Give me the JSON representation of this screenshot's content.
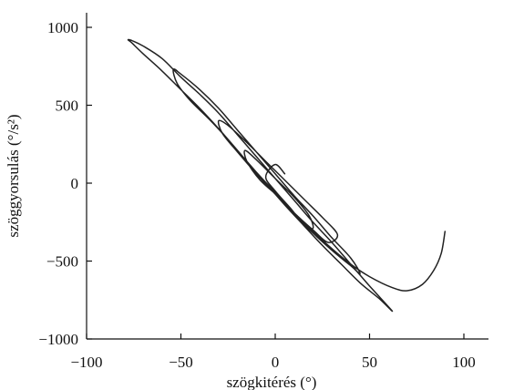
{
  "chart_data": {
    "type": "line",
    "title": "",
    "xlabel": "szögkitérés (°)",
    "ylabel": "szöggyorsulás (°/s²)",
    "xlim": [
      -100,
      125
    ],
    "ylim": [
      -1000,
      1100
    ],
    "x_ticks": [
      -100,
      -50,
      0,
      50,
      100
    ],
    "y_ticks": [
      -1000,
      -500,
      0,
      500,
      1000
    ],
    "x_tick_labels": [
      "−100",
      "−50",
      "0",
      "50",
      "100"
    ],
    "y_tick_labels": [
      "−1000",
      "−500",
      "0",
      "500",
      "1000"
    ],
    "grid": false,
    "legend": "none",
    "series": [
      {
        "color": "#222222",
        "x": [
          90,
          88,
          84,
          78,
          70,
          62,
          50,
          40,
          30,
          20,
          10,
          0,
          -10,
          -20,
          -30,
          -40,
          -50,
          -60,
          -70,
          -76,
          -78,
          -76,
          -70,
          -60,
          -50,
          -40,
          -30,
          -20,
          -10,
          0,
          10,
          20,
          30,
          40,
          50,
          62,
          55,
          45,
          35,
          25,
          15,
          5,
          -5,
          -15,
          -25,
          -35,
          -45,
          -52,
          -54,
          -50,
          -40,
          -30,
          -20,
          -10,
          0,
          10,
          20,
          30,
          40,
          45,
          40,
          30,
          20,
          10,
          0,
          -10,
          -20,
          -28,
          -30,
          -25,
          -15,
          -5,
          5,
          15,
          25,
          33,
          28,
          20,
          10,
          2,
          -8,
          -15,
          -16,
          -10,
          0,
          10,
          18,
          20,
          15,
          8,
          0,
          -5,
          0,
          5
        ],
        "y": [
          -310,
          -450,
          -560,
          -650,
          -690,
          -670,
          -600,
          -520,
          -420,
          -310,
          -190,
          -60,
          70,
          210,
          350,
          480,
          600,
          720,
          830,
          900,
          920,
          915,
          880,
          800,
          680,
          570,
          450,
          310,
          170,
          30,
          -110,
          -250,
          -380,
          -520,
          -660,
          -820,
          -740,
          -640,
          -520,
          -400,
          -270,
          -140,
          0,
          140,
          280,
          410,
          530,
          640,
          730,
          700,
          600,
          480,
          340,
          200,
          60,
          -80,
          -210,
          -350,
          -480,
          -580,
          -530,
          -430,
          -320,
          -200,
          -70,
          60,
          200,
          320,
          400,
          370,
          260,
          140,
          20,
          -100,
          -220,
          -330,
          -380,
          -300,
          -190,
          -90,
          20,
          140,
          210,
          150,
          30,
          -90,
          -210,
          -290,
          -260,
          -160,
          -50,
          40,
          120,
          60
        ]
      }
    ]
  }
}
